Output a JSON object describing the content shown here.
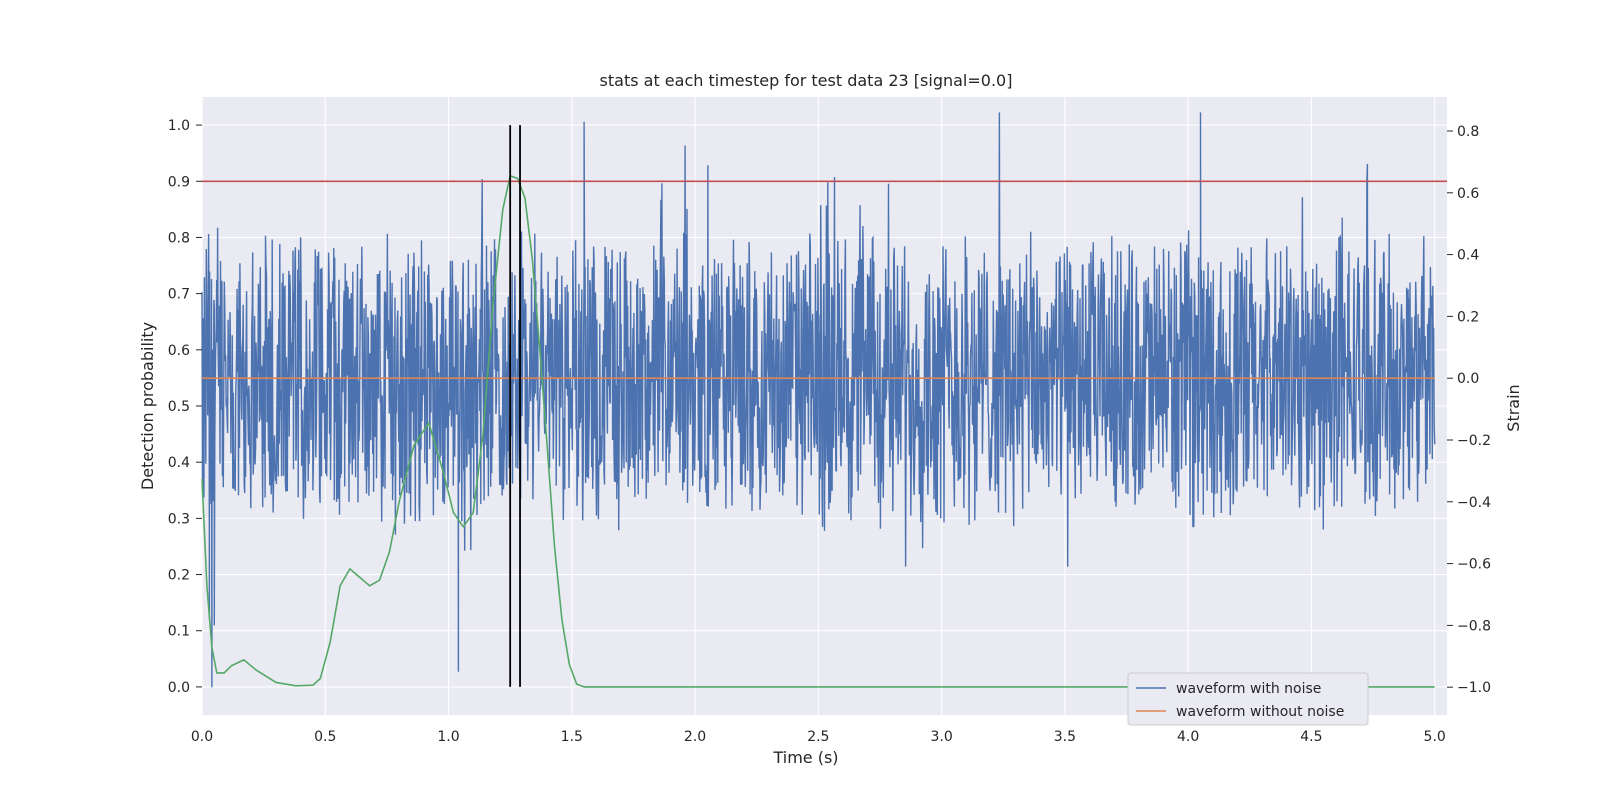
{
  "chart_data": {
    "type": "line",
    "title": "stats at each timestep for test data 23 [signal=0.0]",
    "xlabel": "Time (s)",
    "ylabel_left": "Detection probability",
    "ylabel_right": "Strain",
    "xlim": [
      0.0,
      5.05
    ],
    "ylim_left": [
      -0.05,
      1.05
    ],
    "ylim_right": [
      -1.09,
      0.91
    ],
    "x_ticks": [
      "0.0",
      "0.5",
      "1.0",
      "1.5",
      "2.0",
      "2.5",
      "3.0",
      "3.5",
      "4.0",
      "4.5",
      "5.0"
    ],
    "y_left_ticks": [
      "0.0",
      "0.1",
      "0.2",
      "0.3",
      "0.4",
      "0.5",
      "0.6",
      "0.7",
      "0.8",
      "0.9",
      "1.0"
    ],
    "y_right_ticks": [
      "−1.0",
      "−0.8",
      "−0.6",
      "−0.4",
      "−0.2",
      "0.0",
      "0.2",
      "0.4",
      "0.6",
      "0.8"
    ],
    "grid": true,
    "legend_position": "bottom-right",
    "colors": {
      "background": "#eaeaf2",
      "grid": "#ffffff",
      "noise": "#4c72b0",
      "clean": "#dd8452",
      "probability": "#55a868",
      "threshold": "#c44e52",
      "marker": "#000000"
    },
    "series": [
      {
        "name": "waveform with noise",
        "axis": "right",
        "style": "dense oscillating strain noise around 0",
        "x_range": [
          0.0,
          5.0
        ],
        "baseline": 0.0,
        "typical_amplitude": 0.33,
        "max": 0.86,
        "min": -1.0
      },
      {
        "name": "waveform without noise",
        "axis": "right",
        "x": [
          0.0,
          5.0
        ],
        "y": [
          0.0,
          0.0
        ]
      },
      {
        "axis": "left",
        "x": [
          0.0,
          0.02,
          0.04,
          0.06,
          0.09,
          0.12,
          0.17,
          0.22,
          0.3,
          0.38,
          0.45,
          0.48,
          0.52,
          0.56,
          0.6,
          0.64,
          0.68,
          0.72,
          0.76,
          0.8,
          0.86,
          0.92,
          0.98,
          1.02,
          1.06,
          1.1,
          1.14,
          1.18,
          1.22,
          1.25,
          1.28,
          1.31,
          1.34,
          1.37,
          1.4,
          1.43,
          1.46,
          1.49,
          1.52,
          1.55,
          1.6,
          2.0,
          3.0,
          4.0,
          5.0
        ],
        "y": [
          0.37,
          0.18,
          0.07,
          0.025,
          0.025,
          0.038,
          0.048,
          0.03,
          0.008,
          0.002,
          0.003,
          0.015,
          0.08,
          0.18,
          0.21,
          0.195,
          0.18,
          0.19,
          0.24,
          0.33,
          0.43,
          0.47,
          0.38,
          0.31,
          0.285,
          0.31,
          0.45,
          0.68,
          0.85,
          0.91,
          0.905,
          0.87,
          0.76,
          0.6,
          0.43,
          0.25,
          0.12,
          0.04,
          0.005,
          0.0,
          0.0,
          0.0,
          0.0,
          0.0,
          0.0
        ]
      },
      {
        "axis": "left",
        "x": [
          0.0,
          5.05
        ],
        "y": [
          0.9,
          0.9
        ]
      }
    ],
    "markers_x": [
      1.25,
      1.29
    ]
  }
}
